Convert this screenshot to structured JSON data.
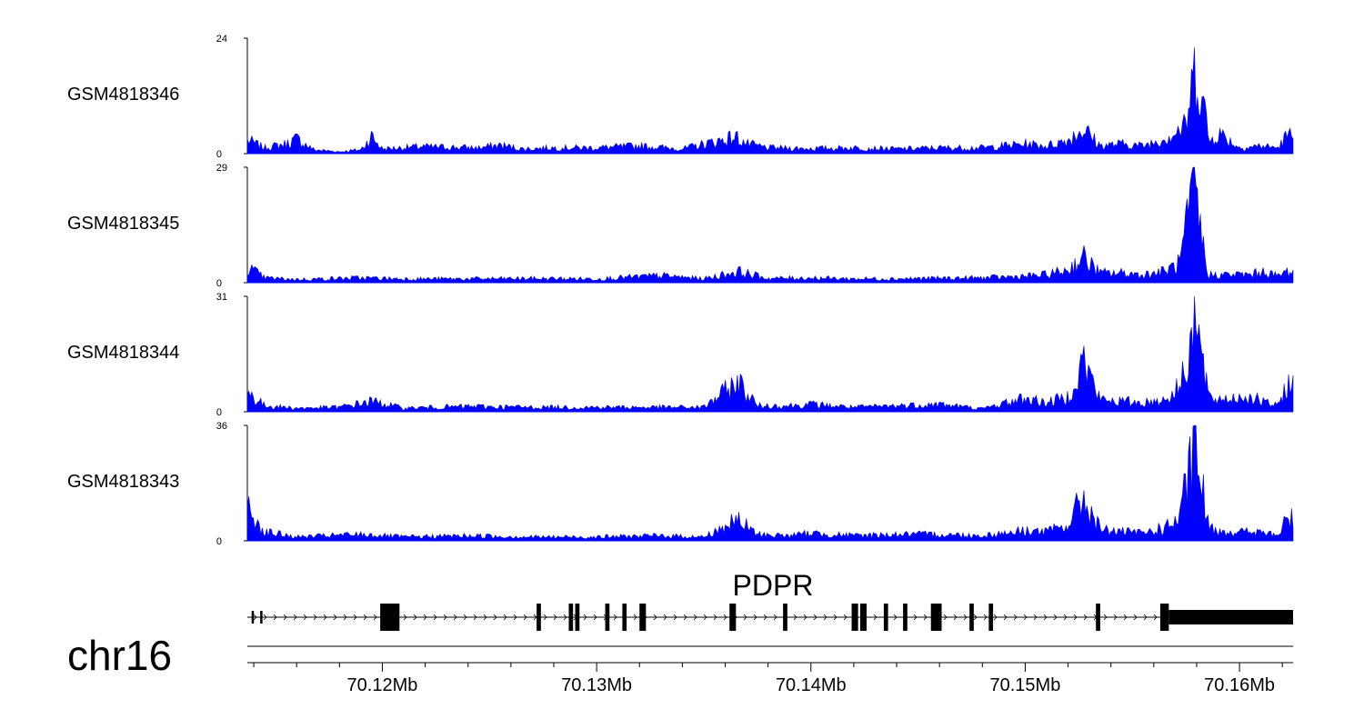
{
  "chart_data": {
    "type": "area",
    "title": "",
    "chromosome": "chr16",
    "xlim": [
      70.1137,
      70.1625
    ],
    "x_unit": "Mb",
    "x_ticks": [
      70.12,
      70.13,
      70.14,
      70.15,
      70.16
    ],
    "x_tick_labels": [
      "70.12Mb",
      "70.13Mb",
      "70.14Mb",
      "70.15Mb",
      "70.16Mb"
    ],
    "series": [
      {
        "name": "GSM4818346",
        "ylim": [
          0,
          24
        ],
        "ymax_label": "24",
        "ymin_label": "0",
        "color": "#0000ff",
        "values": [
          [
            70.1137,
            3.5
          ],
          [
            70.1145,
            1.5
          ],
          [
            70.1155,
            2.5
          ],
          [
            70.116,
            3.8
          ],
          [
            70.1168,
            1.0
          ],
          [
            70.118,
            0.5
          ],
          [
            70.119,
            1.0
          ],
          [
            70.1195,
            4.5
          ],
          [
            70.12,
            1.2
          ],
          [
            70.1218,
            1.8
          ],
          [
            70.1245,
            1.5
          ],
          [
            70.1255,
            2.2
          ],
          [
            70.1265,
            1.2
          ],
          [
            70.128,
            1.5
          ],
          [
            70.13,
            1.5
          ],
          [
            70.132,
            2.0
          ],
          [
            70.134,
            1.2
          ],
          [
            70.1365,
            4.3
          ],
          [
            70.137,
            2.5
          ],
          [
            70.138,
            1.5
          ],
          [
            70.14,
            1.3
          ],
          [
            70.142,
            1.5
          ],
          [
            70.144,
            1.2
          ],
          [
            70.146,
            1.5
          ],
          [
            70.148,
            1.5
          ],
          [
            70.15,
            2.5
          ],
          [
            70.151,
            2.0
          ],
          [
            70.152,
            3.5
          ],
          [
            70.1527,
            6.5
          ],
          [
            70.1535,
            2.0
          ],
          [
            70.1545,
            2.5
          ],
          [
            70.1555,
            2.0
          ],
          [
            70.1565,
            4.0
          ],
          [
            70.1575,
            7.0
          ],
          [
            70.158,
            24.0
          ],
          [
            70.1586,
            3.0
          ],
          [
            70.159,
            5.5
          ],
          [
            70.16,
            1.5
          ],
          [
            70.161,
            2.0
          ],
          [
            70.1618,
            1.5
          ],
          [
            70.1622,
            4.5
          ]
        ]
      },
      {
        "name": "GSM4818345",
        "ylim": [
          0,
          29
        ],
        "ymax_label": "29",
        "ymin_label": "0",
        "color": "#0000ff",
        "values": [
          [
            70.1137,
            5.0
          ],
          [
            70.1145,
            1.5
          ],
          [
            70.116,
            1.0
          ],
          [
            70.119,
            1.5
          ],
          [
            70.121,
            1.2
          ],
          [
            70.124,
            1.2
          ],
          [
            70.127,
            1.3
          ],
          [
            70.13,
            1.2
          ],
          [
            70.133,
            2.2
          ],
          [
            70.135,
            1.2
          ],
          [
            70.1366,
            3.5
          ],
          [
            70.138,
            1.3
          ],
          [
            70.14,
            1.5
          ],
          [
            70.142,
            1.2
          ],
          [
            70.145,
            1.3
          ],
          [
            70.148,
            1.5
          ],
          [
            70.15,
            2.0
          ],
          [
            70.151,
            2.5
          ],
          [
            70.152,
            4.0
          ],
          [
            70.1527,
            8.0
          ],
          [
            70.1535,
            3.0
          ],
          [
            70.1545,
            3.0
          ],
          [
            70.1555,
            2.5
          ],
          [
            70.1565,
            3.5
          ],
          [
            70.1572,
            6.0
          ],
          [
            70.1579,
            29.0
          ],
          [
            70.1585,
            2.5
          ],
          [
            70.1595,
            2.5
          ],
          [
            70.1605,
            2.5
          ],
          [
            70.1612,
            3.5
          ],
          [
            70.1618,
            2.0
          ],
          [
            70.1622,
            3.5
          ]
        ]
      },
      {
        "name": "GSM4818344",
        "ylim": [
          0,
          31
        ],
        "ymax_label": "31",
        "ymin_label": "0",
        "color": "#0000ff",
        "values": [
          [
            70.1137,
            6.5
          ],
          [
            70.1145,
            2.0
          ],
          [
            70.116,
            1.2
          ],
          [
            70.118,
            1.5
          ],
          [
            70.1195,
            3.5
          ],
          [
            70.121,
            1.2
          ],
          [
            70.124,
            1.8
          ],
          [
            70.127,
            1.5
          ],
          [
            70.13,
            1.5
          ],
          [
            70.133,
            1.5
          ],
          [
            70.135,
            1.5
          ],
          [
            70.1366,
            10.0
          ],
          [
            70.1375,
            2.0
          ],
          [
            70.139,
            2.0
          ],
          [
            70.14,
            2.5
          ],
          [
            70.142,
            1.5
          ],
          [
            70.144,
            2.0
          ],
          [
            70.146,
            2.5
          ],
          [
            70.148,
            1.0
          ],
          [
            70.15,
            4.5
          ],
          [
            70.151,
            3.0
          ],
          [
            70.152,
            5.0
          ],
          [
            70.1527,
            17.5
          ],
          [
            70.1535,
            4.0
          ],
          [
            70.1545,
            3.5
          ],
          [
            70.1555,
            3.0
          ],
          [
            70.1565,
            4.0
          ],
          [
            70.1572,
            8.0
          ],
          [
            70.1579,
            31.0
          ],
          [
            70.1586,
            4.0
          ],
          [
            70.1595,
            4.5
          ],
          [
            70.1605,
            5.0
          ],
          [
            70.1612,
            3.0
          ],
          [
            70.1618,
            2.0
          ],
          [
            70.1622,
            9.0
          ]
        ]
      },
      {
        "name": "GSM4818343",
        "ylim": [
          0,
          36
        ],
        "ymax_label": "36",
        "ymin_label": "0",
        "color": "#0000ff",
        "values": [
          [
            70.1137,
            13.0
          ],
          [
            70.1145,
            3.5
          ],
          [
            70.116,
            1.5
          ],
          [
            70.119,
            2.5
          ],
          [
            70.121,
            1.5
          ],
          [
            70.124,
            2.0
          ],
          [
            70.127,
            1.5
          ],
          [
            70.13,
            1.5
          ],
          [
            70.133,
            2.0
          ],
          [
            70.135,
            1.5
          ],
          [
            70.1366,
            8.0
          ],
          [
            70.1375,
            2.5
          ],
          [
            70.139,
            2.0
          ],
          [
            70.14,
            3.0
          ],
          [
            70.142,
            2.0
          ],
          [
            70.144,
            2.5
          ],
          [
            70.146,
            2.5
          ],
          [
            70.148,
            2.0
          ],
          [
            70.15,
            4.0
          ],
          [
            70.151,
            3.5
          ],
          [
            70.152,
            6.0
          ],
          [
            70.1527,
            17.0
          ],
          [
            70.1535,
            4.5
          ],
          [
            70.1545,
            3.5
          ],
          [
            70.1555,
            3.0
          ],
          [
            70.1565,
            5.0
          ],
          [
            70.1572,
            8.5
          ],
          [
            70.1579,
            36.0
          ],
          [
            70.1586,
            4.5
          ],
          [
            70.1595,
            3.5
          ],
          [
            70.1605,
            3.5
          ],
          [
            70.1612,
            3.0
          ],
          [
            70.1618,
            2.0
          ],
          [
            70.1622,
            8.5
          ]
        ]
      }
    ],
    "gene": {
      "name": "PDPR",
      "strand": "+",
      "start": 70.1137,
      "end": 70.1625,
      "exons": [
        [
          70.1139,
          70.114
        ],
        [
          70.1143,
          70.1144
        ],
        [
          70.1199,
          70.1206
        ],
        [
          70.1205,
          70.1208
        ],
        [
          70.1272,
          70.1274
        ],
        [
          70.1287,
          70.1289
        ],
        [
          70.129,
          70.1292
        ],
        [
          70.1304,
          70.1306
        ],
        [
          70.1312,
          70.1314
        ],
        [
          70.132,
          70.1323
        ],
        [
          70.1362,
          70.1365
        ],
        [
          70.1387,
          70.1389
        ],
        [
          70.1419,
          70.1422
        ],
        [
          70.1423,
          70.1426
        ],
        [
          70.1434,
          70.1436
        ],
        [
          70.1443,
          70.1445
        ],
        [
          70.1456,
          70.1461
        ],
        [
          70.1474,
          70.1476
        ],
        [
          70.1483,
          70.1485
        ],
        [
          70.1533,
          70.1535
        ],
        [
          70.1563,
          70.1567
        ],
        [
          70.1567,
          70.1625
        ]
      ]
    }
  }
}
